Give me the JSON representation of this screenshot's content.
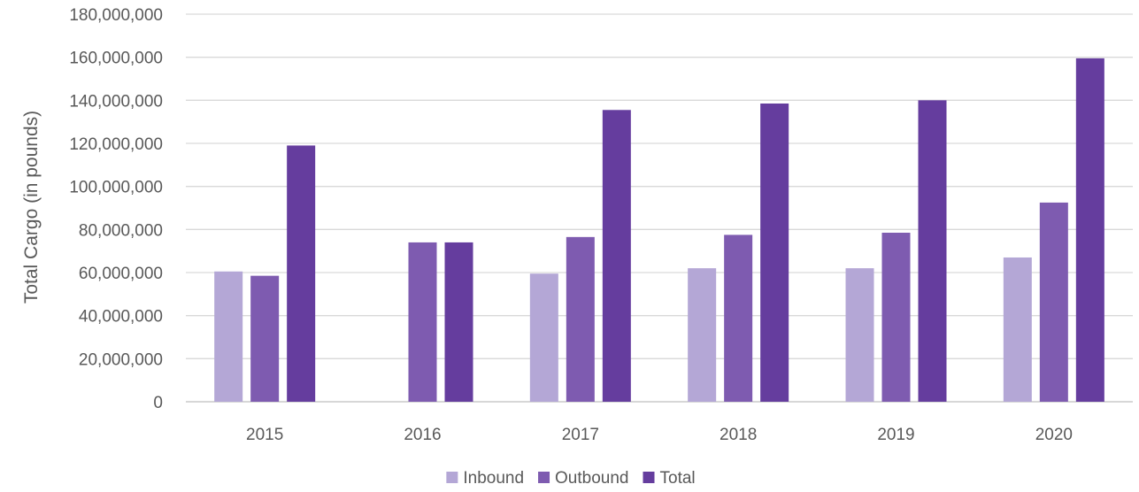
{
  "chart_data": {
    "type": "bar",
    "title": "",
    "xlabel": "",
    "ylabel": "Total Cargo (in pounds)",
    "ylim": [
      0,
      180000000
    ],
    "yticks": [
      0,
      20000000,
      40000000,
      60000000,
      80000000,
      100000000,
      120000000,
      140000000,
      160000000,
      180000000
    ],
    "ytick_labels": [
      "0",
      "20,000,000",
      "40,000,000",
      "60,000,000",
      "80,000,000",
      "100,000,000",
      "120,000,000",
      "140,000,000",
      "160,000,000",
      "180,000,000"
    ],
    "grid": true,
    "legend_position": "bottom",
    "categories": [
      "2015",
      "2016",
      "2017",
      "2018",
      "2019",
      "2020"
    ],
    "series": [
      {
        "name": "Inbound",
        "color": "#b4a7d6",
        "values": [
          60500000,
          null,
          59500000,
          62000000,
          62000000,
          67000000
        ]
      },
      {
        "name": "Outbound",
        "color": "#7e5bb0",
        "values": [
          58500000,
          74000000,
          76500000,
          77500000,
          78500000,
          92500000
        ]
      },
      {
        "name": "Total",
        "color": "#653d9e",
        "values": [
          119000000,
          74000000,
          135500000,
          138500000,
          140000000,
          159500000
        ]
      }
    ]
  }
}
